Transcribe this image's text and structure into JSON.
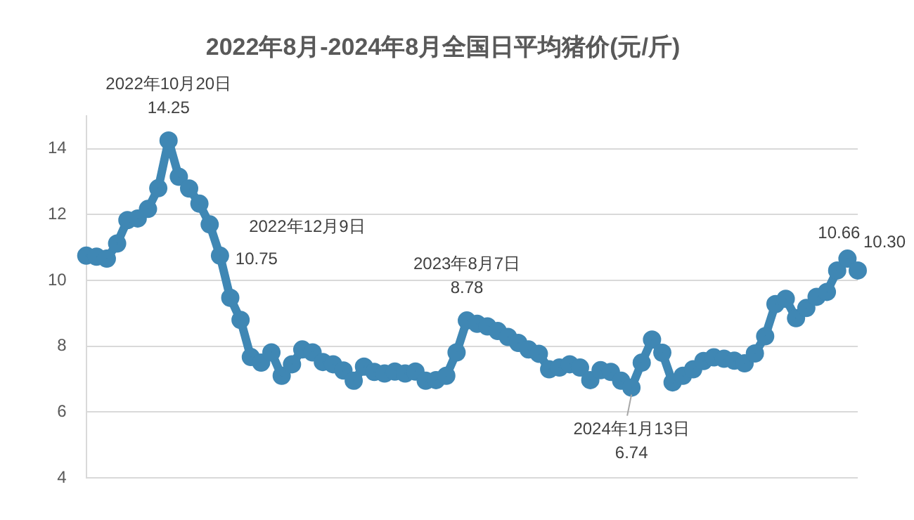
{
  "chart_data": {
    "type": "line",
    "title": "2022年8月-2024年8月全国日平均猪价(元/斤)",
    "categories": [
      null,
      null,
      null,
      null,
      null,
      null,
      null,
      null,
      null,
      null,
      null,
      null,
      null,
      null,
      null,
      null,
      null,
      null,
      null,
      null,
      null,
      null,
      null,
      null,
      null,
      null,
      null,
      null,
      null,
      null,
      null,
      null,
      null,
      null,
      null,
      null,
      null,
      null,
      null,
      null,
      null,
      null,
      null,
      null,
      null,
      null,
      null,
      null,
      null,
      null,
      null,
      null,
      null,
      null,
      null,
      null,
      null,
      null,
      null,
      null,
      null,
      null,
      null,
      null,
      null,
      null,
      null,
      null,
      null,
      null,
      null,
      null,
      null,
      null,
      null,
      null
    ],
    "series": [
      {
        "color": "#3f87b4",
        "values": [
          10.75,
          10.72,
          10.66,
          11.12,
          11.83,
          11.88,
          12.17,
          12.8,
          14.25,
          13.15,
          12.79,
          12.33,
          11.7,
          10.75,
          9.47,
          8.8,
          7.67,
          7.5,
          7.81,
          7.1,
          7.45,
          7.9,
          7.81,
          7.52,
          7.45,
          7.26,
          6.95,
          7.38,
          7.22,
          7.17,
          7.23,
          7.17,
          7.23,
          6.95,
          6.97,
          7.1,
          7.81,
          8.78,
          8.68,
          8.6,
          8.46,
          8.28,
          8.1,
          7.9,
          7.77,
          7.3,
          7.35,
          7.45,
          7.35,
          6.97,
          7.27,
          7.22,
          6.95,
          6.74,
          7.5,
          8.2,
          7.8,
          6.9,
          7.1,
          7.3,
          7.55,
          7.66,
          7.62,
          7.56,
          7.48,
          7.78,
          8.3,
          9.28,
          9.44,
          8.85,
          9.16,
          9.5,
          9.65,
          10.3,
          10.66,
          10.3
        ],
        "value_labels": [
          null,
          null,
          null,
          null,
          null,
          null,
          null,
          null,
          "14.25",
          null,
          null,
          null,
          null,
          "10.75",
          null,
          null,
          null,
          null,
          null,
          null,
          null,
          null,
          null,
          null,
          null,
          null,
          null,
          null,
          null,
          null,
          null,
          null,
          null,
          null,
          null,
          null,
          null,
          "8.78",
          null,
          null,
          null,
          null,
          null,
          null,
          null,
          null,
          null,
          null,
          null,
          null,
          null,
          null,
          null,
          "6.74",
          null,
          null,
          null,
          null,
          null,
          null,
          null,
          null,
          null,
          null,
          null,
          null,
          null,
          null,
          null,
          null,
          null,
          null,
          null,
          null,
          "10.66",
          "10.30"
        ]
      }
    ],
    "annotations": [
      "2022年10月20日",
      "2022年12月9日",
      "2023年8月7日",
      "2024年1月13日"
    ],
    "ylim": [
      4,
      15
    ],
    "yticks": [
      4,
      6,
      8,
      10,
      12,
      14
    ],
    "tick_labels": "y",
    "grid": "y",
    "marker": "circle",
    "legend": false
  }
}
